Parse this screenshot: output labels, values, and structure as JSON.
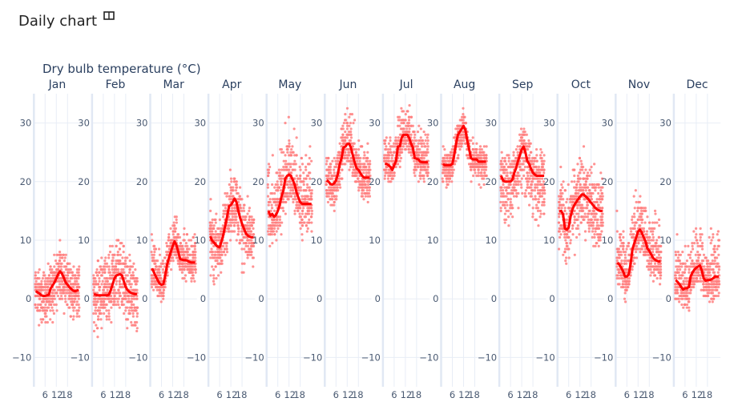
{
  "header": {
    "title": "Daily chart",
    "icon": "book-icon"
  },
  "chart_data": {
    "type": "scatter",
    "title": "Daily chart",
    "ylabel": "Dry bulb temperature (°C)",
    "xlabel": "",
    "ylim": [
      -15,
      35
    ],
    "xlim": [
      0,
      25
    ],
    "x_ticks": [
      "6",
      "12",
      "18"
    ],
    "x_tick_values": [
      6,
      12,
      18
    ],
    "y_ticks": [
      "30",
      "20",
      "10",
      "0",
      "−10"
    ],
    "y_tick_values": [
      30,
      20,
      10,
      0,
      -10
    ],
    "grid": true,
    "colors": {
      "points": "#ff7f7f",
      "mean_line": "#ff0000"
    },
    "hours": [
      1,
      2,
      3,
      4,
      5,
      6,
      7,
      8,
      9,
      10,
      11,
      12,
      13,
      14,
      15,
      16,
      17,
      18,
      19,
      20,
      21,
      22,
      23,
      24
    ],
    "months": [
      {
        "name": "Jan",
        "spread": [
          7,
          6
        ],
        "mean": [
          1.3,
          1.1,
          0.9,
          0.6,
          0.5,
          0.5,
          0.6,
          0.7,
          1.8,
          2.3,
          2.8,
          3.5,
          4.2,
          4.7,
          4.3,
          3.6,
          2.8,
          2.4,
          2.0,
          1.7,
          1.4,
          1.3,
          1.4,
          1.5
        ]
      },
      {
        "name": "Feb",
        "spread": [
          9,
          9
        ],
        "mean": [
          0.8,
          0.7,
          0.6,
          0.6,
          0.6,
          0.6,
          0.6,
          0.6,
          0.7,
          1.5,
          2.5,
          3.5,
          4.0,
          4.1,
          4.2,
          4.0,
          3.0,
          2.0,
          1.5,
          1.2,
          1.0,
          0.9,
          0.8,
          0.8
        ]
      },
      {
        "name": "Mar",
        "spread": [
          4,
          7
        ],
        "mean": [
          5.2,
          4.5,
          3.8,
          3.2,
          2.6,
          2.4,
          2.5,
          4.0,
          5.8,
          7.0,
          8.0,
          9.0,
          9.8,
          9.2,
          8.0,
          6.8,
          6.7,
          6.6,
          6.6,
          6.5,
          6.3,
          6.2,
          6.2,
          6.2
        ]
      },
      {
        "name": "Apr",
        "spread": [
          9,
          7
        ],
        "mean": [
          10.7,
          9.9,
          9.6,
          9.2,
          8.9,
          8.8,
          9.8,
          11.0,
          12.5,
          14.0,
          15.8,
          16.0,
          16.5,
          17.1,
          16.5,
          15.0,
          13.8,
          12.8,
          12.0,
          11.2,
          10.8,
          10.6,
          10.5,
          10.5
        ]
      },
      {
        "name": "May",
        "spread": [
          7,
          12
        ],
        "mean": [
          15.0,
          14.2,
          14.5,
          14.0,
          14.3,
          15.0,
          16.0,
          17.5,
          18.5,
          20.5,
          21.0,
          21.2,
          21.0,
          20.3,
          19.5,
          18.2,
          17.3,
          16.5,
          16.2,
          16.2,
          16.2,
          16.2,
          16.2,
          16.2
        ]
      },
      {
        "name": "Jun",
        "spread": [
          6,
          8
        ],
        "mean": [
          20.2,
          20.0,
          19.6,
          19.5,
          19.7,
          20.2,
          21.3,
          23.0,
          24.0,
          25.8,
          26.0,
          26.4,
          26.5,
          25.8,
          24.5,
          23.3,
          22.3,
          22.0,
          21.5,
          21.0,
          20.7,
          20.7,
          20.7,
          20.7
        ]
      },
      {
        "name": "Jul",
        "spread": [
          4,
          7
        ],
        "mean": [
          23.0,
          23.0,
          22.8,
          22.5,
          22.0,
          22.8,
          23.5,
          26.0,
          26.0,
          27.5,
          28.0,
          28.0,
          28.0,
          27.5,
          26.5,
          25.8,
          24.0,
          23.9,
          23.8,
          23.4,
          23.3,
          23.3,
          23.3,
          23.3
        ]
      },
      {
        "name": "Aug",
        "spread": [
          5,
          4
        ],
        "mean": [
          23.0,
          22.8,
          22.8,
          22.8,
          22.8,
          23.0,
          24.5,
          26.5,
          28.0,
          28.5,
          29.0,
          29.5,
          28.8,
          27.0,
          25.5,
          24.0,
          23.8,
          23.8,
          23.8,
          23.4,
          23.4,
          23.4,
          23.4,
          23.4
        ]
      },
      {
        "name": "Sep",
        "spread": [
          10,
          6
        ],
        "mean": [
          21.0,
          20.2,
          20.0,
          20.0,
          20.0,
          20.0,
          20.3,
          21.5,
          22.3,
          23.5,
          24.5,
          25.5,
          26.0,
          25.0,
          23.5,
          23.0,
          22.2,
          21.5,
          21.2,
          21.0,
          21.0,
          21.0,
          21.0,
          21.0
        ]
      },
      {
        "name": "Oct",
        "spread": [
          9,
          9
        ],
        "mean": [
          14.9,
          15.0,
          14.4,
          12.0,
          11.8,
          12.2,
          14.0,
          15.3,
          16.0,
          16.5,
          17.0,
          17.4,
          17.8,
          17.8,
          17.5,
          17.2,
          16.8,
          16.4,
          16.0,
          15.6,
          15.3,
          15.1,
          15.0,
          15.0
        ]
      },
      {
        "name": "Nov",
        "spread": [
          5,
          10
        ],
        "mean": [
          6.2,
          5.8,
          5.3,
          4.7,
          3.8,
          3.8,
          4.2,
          6.0,
          8.5,
          9.5,
          10.5,
          11.5,
          11.8,
          11.3,
          10.5,
          9.8,
          8.6,
          8.2,
          7.6,
          7.0,
          6.7,
          6.5,
          6.4,
          6.4
        ]
      },
      {
        "name": "Dec",
        "spread": [
          5,
          10
        ],
        "mean": [
          3.2,
          2.9,
          2.5,
          2.0,
          1.6,
          1.8,
          1.8,
          2.0,
          3.8,
          4.5,
          5.0,
          5.3,
          5.5,
          5.7,
          4.8,
          3.5,
          3.1,
          3.2,
          3.2,
          3.3,
          3.5,
          3.8,
          3.8,
          3.8
        ]
      }
    ]
  }
}
